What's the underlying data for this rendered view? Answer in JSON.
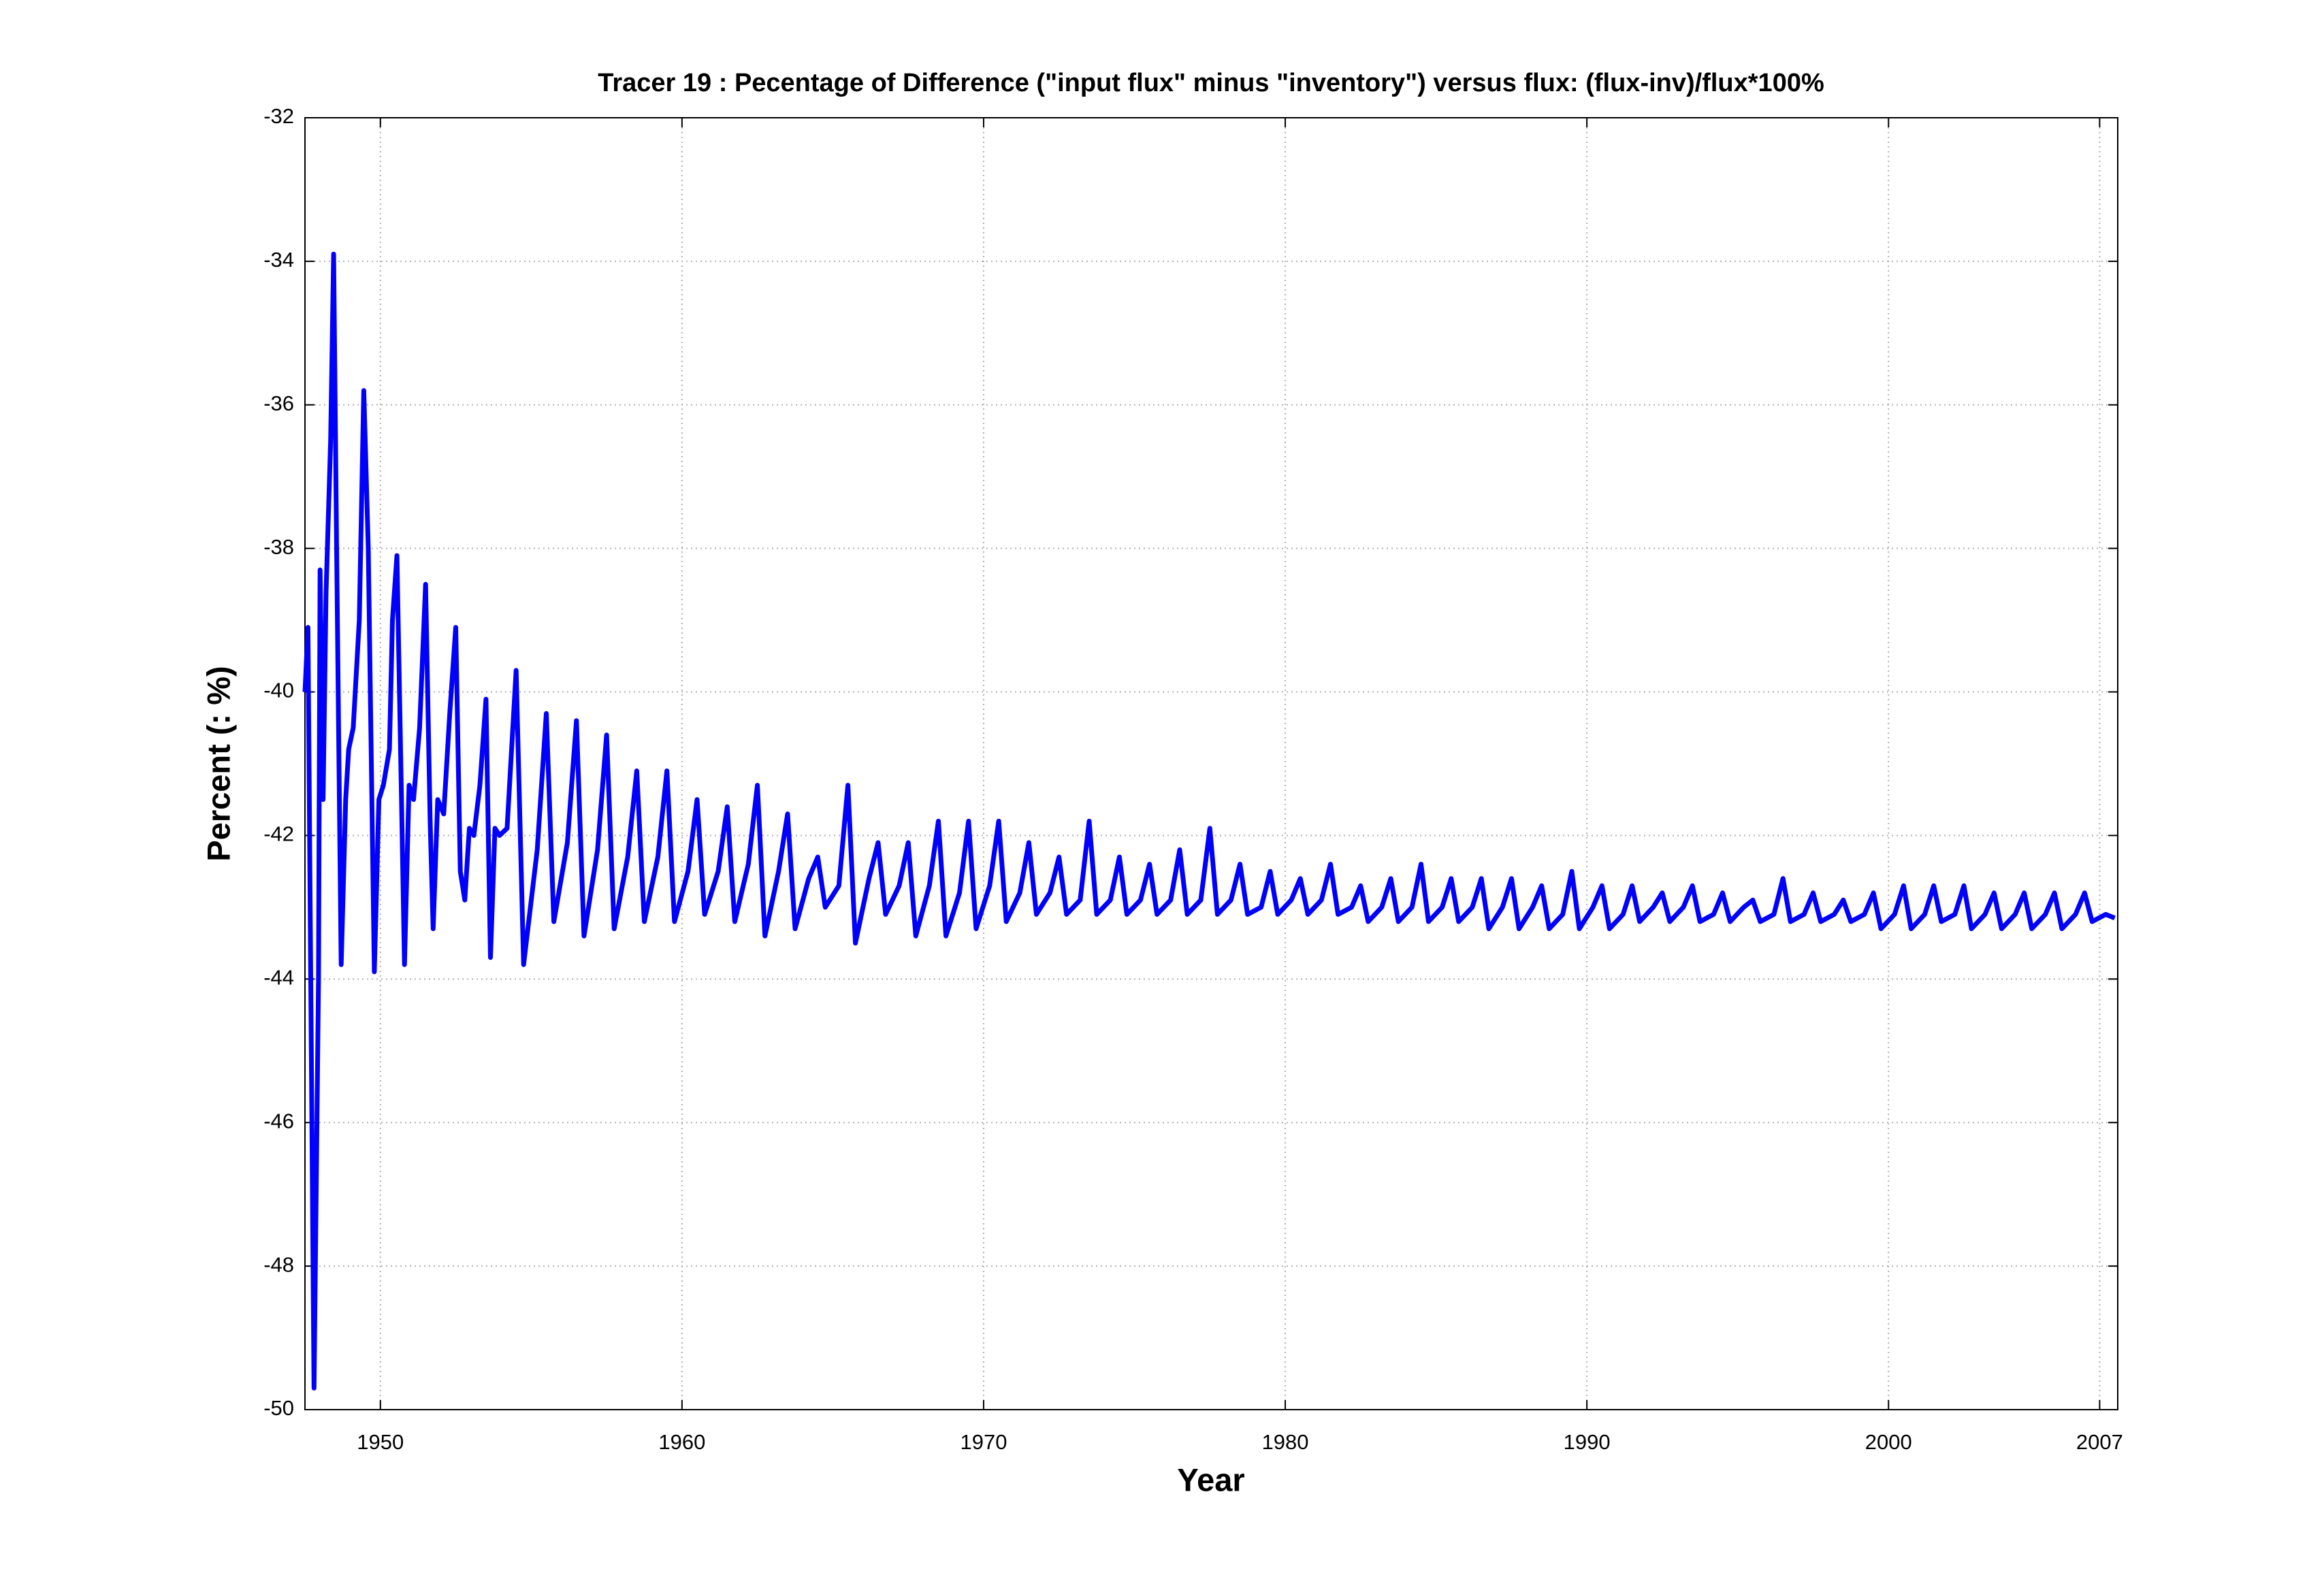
{
  "chart_data": {
    "type": "line",
    "title": "Tracer 19 : Pecentage of Difference (\"input flux\" minus \"inventory\") versus flux: (flux-inv)/flux*100%",
    "x_label": "Year",
    "y_label": "Percent (: %)",
    "xlim": [
      1947.5,
      2007.6
    ],
    "xticks": [
      1950,
      1960,
      1970,
      1980,
      1990,
      2000,
      2007
    ],
    "ylim": [
      -50,
      -32
    ],
    "yticks": [
      -50,
      -48,
      -46,
      -44,
      -42,
      -40,
      -38,
      -36,
      -34,
      -32
    ],
    "grid": true,
    "x": [
      1947.5,
      1947.6,
      1947.7,
      1947.8,
      1947.95,
      1948.0,
      1948.1,
      1948.2,
      1948.35,
      1948.45,
      1948.55,
      1948.7,
      1948.85,
      1948.95,
      1949.1,
      1949.3,
      1949.45,
      1949.6,
      1949.8,
      1949.95,
      1950.1,
      1950.3,
      1950.4,
      1950.55,
      1950.7,
      1950.8,
      1950.95,
      1951.1,
      1951.3,
      1951.5,
      1951.65,
      1951.75,
      1951.9,
      1952.1,
      1952.3,
      1952.5,
      1952.65,
      1952.8,
      1952.95,
      1953.1,
      1953.3,
      1953.5,
      1953.65,
      1953.8,
      1953.95,
      1954.2,
      1954.5,
      1954.75,
      1955.2,
      1955.5,
      1955.75,
      1956.2,
      1956.5,
      1956.75,
      1957.2,
      1957.5,
      1957.75,
      1958.2,
      1958.5,
      1958.75,
      1959.2,
      1959.5,
      1959.75,
      1960.2,
      1960.5,
      1960.75,
      1961.2,
      1961.5,
      1961.75,
      1962.2,
      1962.5,
      1962.75,
      1963.2,
      1963.5,
      1963.75,
      1964.2,
      1964.5,
      1964.75,
      1965.2,
      1965.5,
      1965.75,
      1966.2,
      1966.5,
      1966.75,
      1967.2,
      1967.5,
      1967.75,
      1968.2,
      1968.5,
      1968.75,
      1969.2,
      1969.5,
      1969.75,
      1970.2,
      1970.5,
      1970.75,
      1971.2,
      1971.5,
      1971.75,
      1972.2,
      1972.5,
      1972.75,
      1973.2,
      1973.5,
      1973.75,
      1974.2,
      1974.5,
      1974.75,
      1975.2,
      1975.5,
      1975.75,
      1976.2,
      1976.5,
      1976.75,
      1977.2,
      1977.5,
      1977.75,
      1978.2,
      1978.5,
      1978.75,
      1979.2,
      1979.5,
      1979.75,
      1980.2,
      1980.5,
      1980.75,
      1981.2,
      1981.5,
      1981.75,
      1982.2,
      1982.5,
      1982.75,
      1983.2,
      1983.5,
      1983.75,
      1984.2,
      1984.5,
      1984.75,
      1985.2,
      1985.5,
      1985.75,
      1986.2,
      1986.5,
      1986.75,
      1987.2,
      1987.5,
      1987.75,
      1988.2,
      1988.5,
      1988.75,
      1989.2,
      1989.5,
      1989.75,
      1990.2,
      1990.5,
      1990.75,
      1991.2,
      1991.5,
      1991.75,
      1992.2,
      1992.5,
      1992.75,
      1993.2,
      1993.5,
      1993.75,
      1994.2,
      1994.5,
      1994.75,
      1995.2,
      1995.5,
      1995.75,
      1996.2,
      1996.5,
      1996.75,
      1997.2,
      1997.5,
      1997.75,
      1998.2,
      1998.5,
      1998.75,
      1999.2,
      1999.5,
      1999.75,
      2000.2,
      2000.5,
      2000.75,
      2001.2,
      2001.5,
      2001.75,
      2002.2,
      2002.5,
      2002.75,
      2003.2,
      2003.5,
      2003.75,
      2004.2,
      2004.5,
      2004.75,
      2005.2,
      2005.5,
      2005.75,
      2006.2,
      2006.5,
      2006.75,
      2007.2,
      2007.5
    ],
    "series": [
      {
        "name": "Tracer 19",
        "color": "#0000ff",
        "values": [
          -40,
          -39.1,
          -44.5,
          -49.7,
          -44,
          -38.3,
          -41.5,
          -38.6,
          -36.5,
          -33.9,
          -38,
          -43.8,
          -41.5,
          -40.8,
          -40.5,
          -39,
          -35.8,
          -38,
          -43.9,
          -41.5,
          -41.3,
          -40.8,
          -39,
          -38.1,
          -41.5,
          -43.8,
          -41.3,
          -41.5,
          -40.5,
          -38.5,
          -41.8,
          -43.3,
          -41.5,
          -41.7,
          -40.3,
          -39.1,
          -42.5,
          -42.9,
          -41.9,
          -42,
          -41.3,
          -40.1,
          -43.7,
          -41.9,
          -42,
          -41.9,
          -39.7,
          -43.8,
          -42.2,
          -40.3,
          -43.2,
          -42.1,
          -40.4,
          -43.4,
          -42.2,
          -40.6,
          -43.3,
          -42.3,
          -41.1,
          -43.2,
          -42.3,
          -41.1,
          -43.2,
          -42.5,
          -41.5,
          -43.1,
          -42.5,
          -41.6,
          -43.2,
          -42.4,
          -41.3,
          -43.4,
          -42.5,
          -41.7,
          -43.3,
          -42.6,
          -42.3,
          -43.0,
          -42.7,
          -41.3,
          -43.5,
          -42.6,
          -42.1,
          -43.1,
          -42.7,
          -42.1,
          -43.4,
          -42.7,
          -41.8,
          -43.4,
          -42.8,
          -41.8,
          -43.3,
          -42.7,
          -41.8,
          -43.2,
          -42.8,
          -42.1,
          -43.1,
          -42.8,
          -42.3,
          -43.1,
          -42.9,
          -41.8,
          -43.1,
          -42.9,
          -42.3,
          -43.1,
          -42.9,
          -42.4,
          -43.1,
          -42.9,
          -42.2,
          -43.1,
          -42.9,
          -41.9,
          -43.1,
          -42.9,
          -42.4,
          -43.1,
          -43.0,
          -42.5,
          -43.1,
          -42.9,
          -42.6,
          -43.1,
          -42.9,
          -42.4,
          -43.1,
          -43.0,
          -42.7,
          -43.2,
          -43.0,
          -42.6,
          -43.2,
          -43.0,
          -42.4,
          -43.2,
          -43.0,
          -42.6,
          -43.2,
          -43.0,
          -42.6,
          -43.3,
          -43.0,
          -42.6,
          -43.3,
          -43.0,
          -42.7,
          -43.3,
          -43.1,
          -42.5,
          -43.3,
          -43.0,
          -42.7,
          -43.3,
          -43.1,
          -42.7,
          -43.2,
          -43.0,
          -42.8,
          -43.2,
          -43.0,
          -42.7,
          -43.2,
          -43.1,
          -42.8,
          -43.2,
          -43.0,
          -42.9,
          -43.2,
          -43.1,
          -42.6,
          -43.2,
          -43.1,
          -42.8,
          -43.2,
          -43.1,
          -42.9,
          -43.2,
          -43.1,
          -42.8,
          -43.3,
          -43.1,
          -42.7,
          -43.3,
          -43.1,
          -42.7,
          -43.2,
          -43.1,
          -42.7,
          -43.3,
          -43.1,
          -42.8,
          -43.3,
          -43.1,
          -42.8,
          -43.3,
          -43.1,
          -42.8,
          -43.3,
          -43.1,
          -42.8,
          -43.2,
          -43.1,
          -43.15
        ]
      }
    ]
  }
}
